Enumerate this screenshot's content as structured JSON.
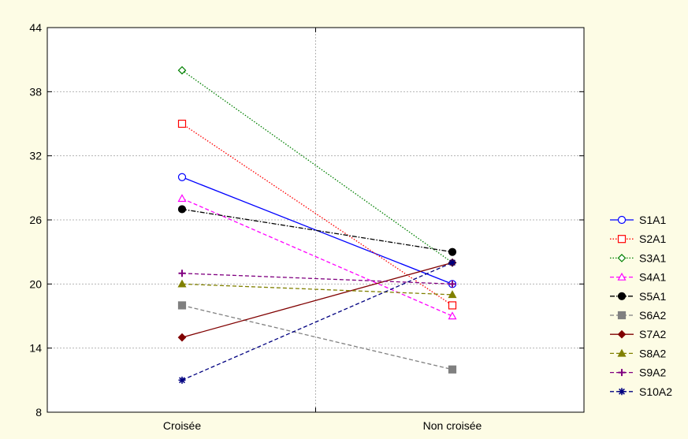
{
  "chart_data": {
    "type": "line",
    "title": "",
    "xlabel": "",
    "ylabel": "",
    "categories": [
      "Croisée",
      "Non croisée"
    ],
    "ylim": [
      8,
      44
    ],
    "yticks": [
      8,
      14,
      20,
      26,
      32,
      38,
      44
    ],
    "grid": true,
    "legend_position": "right",
    "series": [
      {
        "name": "S1A1",
        "values": [
          30,
          20
        ],
        "color": "#0000ff",
        "marker": "circle-open",
        "dash": "solid"
      },
      {
        "name": "S2A1",
        "values": [
          35,
          18
        ],
        "color": "#ff0000",
        "marker": "square-open",
        "dash": "dotted"
      },
      {
        "name": "S3A1",
        "values": [
          40,
          22
        ],
        "color": "#008000",
        "marker": "diamond-open",
        "dash": "dotted"
      },
      {
        "name": "S4A1",
        "values": [
          28,
          17
        ],
        "color": "#ff00ff",
        "marker": "triangle-open",
        "dash": "dashed"
      },
      {
        "name": "S5A1",
        "values": [
          27,
          23
        ],
        "color": "#000000",
        "marker": "circle-filled",
        "dash": "dashdot"
      },
      {
        "name": "S6A2",
        "values": [
          18,
          12
        ],
        "color": "#808080",
        "marker": "square-filled",
        "dash": "dashed"
      },
      {
        "name": "S7A2",
        "values": [
          15,
          22
        ],
        "color": "#800000",
        "marker": "diamond-filled",
        "dash": "solid"
      },
      {
        "name": "S8A2",
        "values": [
          20,
          19
        ],
        "color": "#808000",
        "marker": "triangle-filled",
        "dash": "dashed"
      },
      {
        "name": "S9A2",
        "values": [
          21,
          20
        ],
        "color": "#800080",
        "marker": "plus",
        "dash": "dashed"
      },
      {
        "name": "S10A2",
        "values": [
          11,
          22
        ],
        "color": "#000080",
        "marker": "star",
        "dash": "dashed"
      }
    ]
  }
}
